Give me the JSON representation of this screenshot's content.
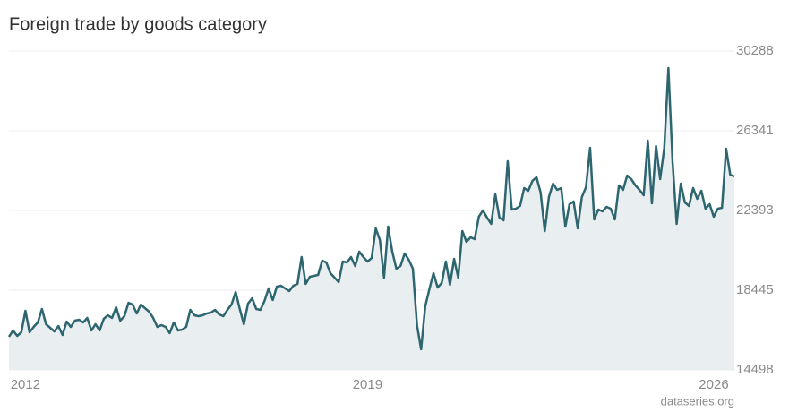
{
  "chart_data": {
    "type": "area-line",
    "title": "Foreign trade by goods category",
    "source": "dataseries.org",
    "color": "#2e6670",
    "fill": "#e9eef1",
    "grid": true,
    "ylim": [
      14498,
      30288
    ],
    "yticks": [
      14498,
      18445,
      22393,
      26341,
      30288
    ],
    "categories": [
      null,
      null,
      null,
      null,
      "2012",
      null,
      null,
      null,
      null,
      null,
      null,
      null,
      null,
      null,
      null,
      null,
      null,
      null,
      null,
      null,
      null,
      null,
      null,
      null,
      null,
      null,
      null,
      null,
      null,
      null,
      null,
      null,
      null,
      null,
      null,
      null,
      null,
      null,
      null,
      null,
      null,
      null,
      null,
      null,
      null,
      null,
      null,
      null,
      null,
      null,
      null,
      null,
      null,
      null,
      null,
      null,
      null,
      null,
      null,
      null,
      null,
      null,
      null,
      null,
      null,
      null,
      null,
      null,
      null,
      null,
      null,
      null,
      null,
      null,
      null,
      null,
      null,
      null,
      null,
      null,
      null,
      null,
      null,
      null,
      null,
      null,
      null,
      "2019",
      null,
      null,
      null,
      null,
      null,
      null,
      null,
      null,
      null,
      null,
      null,
      null,
      null,
      null,
      null,
      null,
      null,
      null,
      null,
      null,
      null,
      null,
      null,
      null,
      null,
      null,
      null,
      null,
      null,
      null,
      null,
      null,
      null,
      null,
      null,
      null,
      null,
      null,
      null,
      null,
      null,
      null,
      null,
      null,
      null,
      null,
      null,
      null,
      null,
      null,
      null,
      null,
      null,
      null,
      null,
      null,
      null,
      null,
      null,
      null,
      null,
      null,
      null,
      null,
      null,
      null,
      null,
      null,
      null,
      null,
      null,
      null,
      null,
      null,
      null,
      null,
      null,
      null,
      null,
      null,
      null,
      null,
      null,
      "2026",
      null,
      null,
      null,
      null,
      null
    ],
    "values": [
      16139,
      16450,
      16183,
      16361,
      17425,
      16361,
      16627,
      16849,
      17514,
      16760,
      16583,
      16405,
      16671,
      16228,
      16893,
      16627,
      16937,
      16982,
      16849,
      17071,
      16450,
      16760,
      16450,
      17026,
      17204,
      17071,
      17603,
      16937,
      17159,
      17825,
      17736,
      17292,
      17736,
      17558,
      17381,
      17071,
      16627,
      16716,
      16627,
      16317,
      16849,
      16450,
      16494,
      16627,
      17470,
      17204,
      17159,
      17204,
      17292,
      17337,
      17470,
      17248,
      17159,
      17470,
      17736,
      18357,
      17514,
      16760,
      17780,
      18046,
      17514,
      17470,
      17913,
      18534,
      17958,
      18623,
      18667,
      18534,
      18401,
      18667,
      18756,
      20087,
      18756,
      19111,
      19155,
      19200,
      19909,
      19820,
      19288,
      19066,
      18845,
      19865,
      19820,
      20087,
      19643,
      20353,
      20087,
      19865,
      20042,
      21506,
      20929,
      19066,
      21595,
      20353,
      19510,
      19643,
      20264,
      19954,
      19510,
      16716,
      15518,
      17647,
      18490,
      19288,
      18579,
      18800,
      19865,
      18712,
      19998,
      19066,
      21373,
      20841,
      21062,
      20974,
      22083,
      22393,
      22038,
      21728,
      23191,
      22038,
      21905,
      24832,
      22437,
      22482,
      22615,
      23502,
      23369,
      23857,
      24034,
      23280,
      21373,
      23058,
      23724,
      23413,
      23502,
      21595,
      22703,
      22837,
      21506,
      23058,
      23546,
      25498,
      21949,
      22437,
      22349,
      22570,
      22482,
      21949,
      23635,
      23413,
      24123,
      23945,
      23635,
      23413,
      23147,
      25853,
      22748,
      25587,
      23945,
      25498,
      29445,
      24832,
      21728,
      23724,
      22792,
      22615,
      23502,
      22970,
      23369,
      22482,
      22703,
      22083,
      22482,
      22526,
      25453,
      24167,
      24078
    ]
  }
}
